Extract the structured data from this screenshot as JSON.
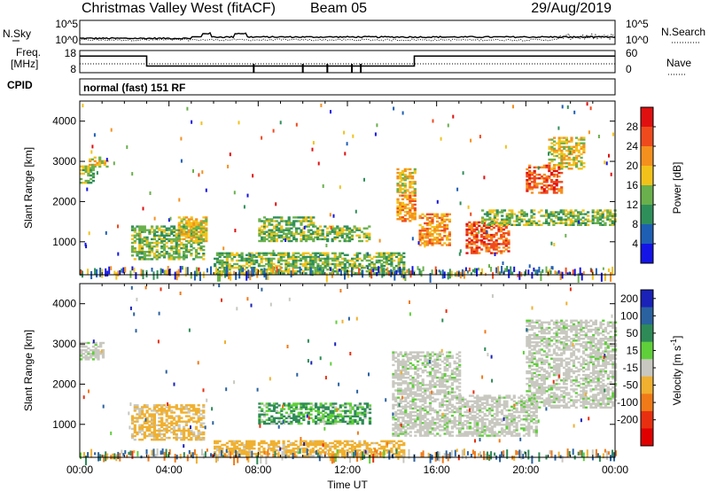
{
  "header": {
    "station": "Christmas Valley West (fitACF)",
    "beam": "Beam 05",
    "date": "29/Aug/2019"
  },
  "strips": {
    "noise": {
      "left_label": "N.Sky",
      "right_label": "N.Search",
      "left_ticks": [
        "10^5",
        "10^0"
      ],
      "right_ticks": [
        "10^5",
        "10^0"
      ]
    },
    "freq": {
      "left_label_line1": "Freq.",
      "left_label_line2": "[MHz]",
      "right_label": "Nave",
      "left_ticks": [
        "18",
        "8"
      ],
      "right_ticks": [
        "60",
        "0"
      ],
      "step_mhz": [
        {
          "t": 0.0,
          "f": 15.5
        },
        {
          "t": 3.0,
          "f": 11.0
        },
        {
          "t": 15.0,
          "f": 15.5
        },
        {
          "t": 24.0,
          "f": 15.5
        }
      ]
    },
    "cpid": {
      "label": "CPID",
      "text": "normal (fast) 151 RF"
    }
  },
  "chart_data": [
    {
      "type": "heatmap",
      "quantity": "Power",
      "xlabel": "",
      "ylabel": "Slant Range [km]",
      "xlim": [
        0,
        24
      ],
      "ylim": [
        180,
        4500
      ],
      "yticks": [
        1000,
        2000,
        3000,
        4000
      ],
      "ytick_labels": [
        "1000",
        "2000",
        "3000",
        "4000"
      ],
      "colorbar": {
        "label": "Power [dB]",
        "ticks": [
          "4",
          "8",
          "12",
          "16",
          "20",
          "24",
          "28"
        ],
        "colors": [
          "#1414e6",
          "#1e5fb4",
          "#2f8f5a",
          "#6ab04c",
          "#f2c21a",
          "#f5901e",
          "#ef4a1e",
          "#e01010"
        ]
      },
      "echo_regions": [
        {
          "t_start": 0.0,
          "t_end": 0.6,
          "r_low": 2450,
          "r_high": 2900,
          "level": 3
        },
        {
          "t_start": 0.4,
          "t_end": 1.2,
          "r_low": 2850,
          "r_high": 3100,
          "level": 4
        },
        {
          "t_start": 2.3,
          "t_end": 5.6,
          "r_low": 550,
          "r_high": 1400,
          "level": 3
        },
        {
          "t_start": 4.4,
          "t_end": 5.7,
          "r_low": 1000,
          "r_high": 1600,
          "level": 4
        },
        {
          "t_start": 6.0,
          "t_end": 14.5,
          "r_low": 200,
          "r_high": 700,
          "level": 3
        },
        {
          "t_start": 8.0,
          "t_end": 10.5,
          "r_low": 1000,
          "r_high": 1600,
          "level": 3
        },
        {
          "t_start": 10.5,
          "t_end": 13.0,
          "r_low": 1000,
          "r_high": 1400,
          "level": 3
        },
        {
          "t_start": 14.2,
          "t_end": 15.0,
          "r_low": 1500,
          "r_high": 2300,
          "level": 5
        },
        {
          "t_start": 14.2,
          "t_end": 15.0,
          "r_low": 2200,
          "r_high": 2800,
          "level": 4
        },
        {
          "t_start": 15.2,
          "t_end": 16.6,
          "r_low": 900,
          "r_high": 1700,
          "level": 5
        },
        {
          "t_start": 17.3,
          "t_end": 19.2,
          "r_low": 700,
          "r_high": 1500,
          "level": 6
        },
        {
          "t_start": 18.0,
          "t_end": 24.0,
          "r_low": 1400,
          "r_high": 1800,
          "level": 3
        },
        {
          "t_start": 20.0,
          "t_end": 21.6,
          "r_low": 2200,
          "r_high": 2900,
          "level": 6
        },
        {
          "t_start": 21.0,
          "t_end": 22.6,
          "r_low": 2800,
          "r_high": 3600,
          "level": 4
        }
      ]
    },
    {
      "type": "heatmap",
      "quantity": "Velocity",
      "xlabel": "Time UT",
      "ylabel": "Slant Range [km]",
      "xlim": [
        0,
        24
      ],
      "ylim": [
        180,
        4500
      ],
      "yticks": [
        1000,
        2000,
        3000,
        4000
      ],
      "ytick_labels": [
        "1000",
        "2000",
        "3000",
        "4000"
      ],
      "xticks": [
        0,
        4,
        8,
        12,
        16,
        20,
        24
      ],
      "xtick_labels": [
        "00:00",
        "04:00",
        "08:00",
        "12:00",
        "16:00",
        "20:00",
        "00:00"
      ],
      "colorbar": {
        "label": "Velocity [m s^-1]",
        "ticks": [
          "200",
          "100",
          "50",
          "15",
          "-15",
          "-50",
          "-100",
          "-200"
        ],
        "colors": [
          "#1a22b8",
          "#2a62a0",
          "#2e8b57",
          "#5fcf3a",
          "#c8c8c0",
          "#f0b030",
          "#f07a18",
          "#e83010",
          "#e00000"
        ]
      },
      "echo_regions": [
        {
          "t_start": 0.0,
          "t_end": 1.1,
          "r_low": 2600,
          "r_high": 3050,
          "velocity": 0
        },
        {
          "t_start": 2.3,
          "t_end": 5.6,
          "r_low": 600,
          "r_high": 1500,
          "velocity": -40
        },
        {
          "t_start": 6.0,
          "t_end": 14.5,
          "r_low": 200,
          "r_high": 600,
          "velocity": -45
        },
        {
          "t_start": 8.0,
          "t_end": 13.0,
          "r_low": 1000,
          "r_high": 1500,
          "velocity": 30
        },
        {
          "t_start": 14.0,
          "t_end": 17.0,
          "r_low": 700,
          "r_high": 2800,
          "velocity": 0
        },
        {
          "t_start": 17.0,
          "t_end": 20.5,
          "r_low": 700,
          "r_high": 1700,
          "velocity": 0
        },
        {
          "t_start": 20.0,
          "t_end": 24.0,
          "r_low": 1400,
          "r_high": 3600,
          "velocity": 0
        }
      ]
    }
  ]
}
